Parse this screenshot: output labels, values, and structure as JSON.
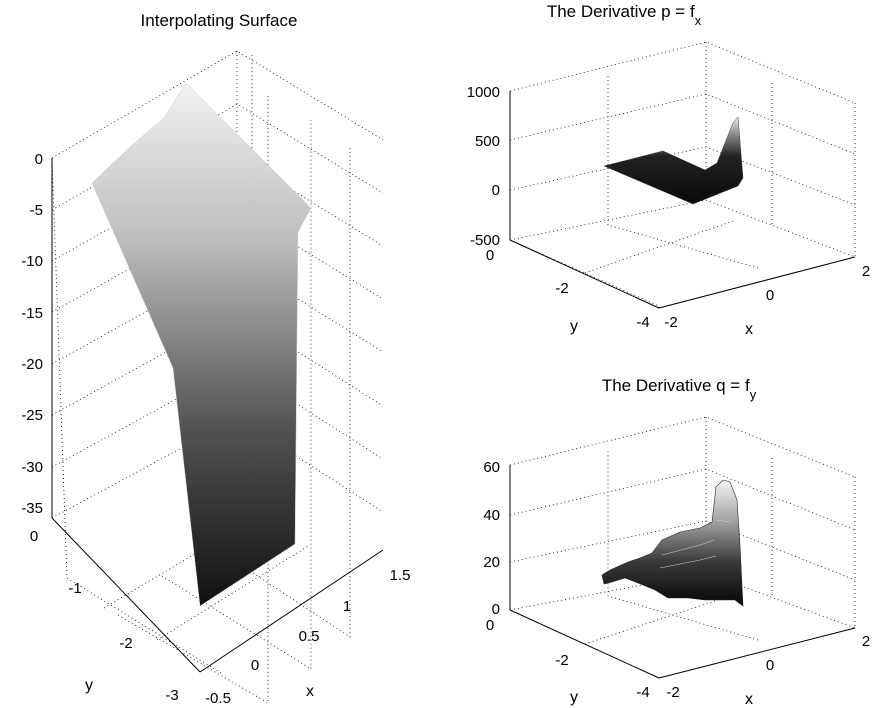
{
  "chart_data": [
    {
      "type": "surface",
      "title": "Interpolating Surface",
      "xlabel": "x",
      "ylabel": "y",
      "zlabel": "",
      "xlim": [
        -0.5,
        1.5
      ],
      "ylim": [
        -3,
        0
      ],
      "zlim": [
        -35,
        0
      ],
      "xticks": [
        "-0.5",
        "0",
        "0.5",
        "1",
        "1.5"
      ],
      "yticks": [
        "-3",
        "-2",
        "-1",
        "0"
      ],
      "zticks": [
        "-35",
        "-30",
        "-25",
        "-20",
        "-15",
        "-10",
        "-5",
        "0"
      ],
      "grid": true,
      "colormap": "gray",
      "surface_outline": [
        {
          "x": -0.5,
          "y": -3,
          "z": -35
        },
        {
          "x": 0.1,
          "y": -3,
          "z": -33
        },
        {
          "x": 0.5,
          "y": -1.1,
          "z": -10
        },
        {
          "x": 0.3,
          "y": -0.4,
          "z": -2
        },
        {
          "x": 0.2,
          "y": 0,
          "z": 0
        },
        {
          "x": -0.5,
          "y": 0,
          "z": -5
        }
      ]
    },
    {
      "type": "surface",
      "title_main": "The Derivative p = f",
      "title_sub": "x",
      "xlabel": "x",
      "ylabel": "y",
      "xlim": [
        -2,
        2
      ],
      "ylim": [
        -4,
        0
      ],
      "zlim": [
        -500,
        1000
      ],
      "xticks": [
        "-2",
        "0",
        "2"
      ],
      "yticks": [
        "-4",
        "-2",
        "0"
      ],
      "zticks": [
        "-500",
        "0",
        "500",
        "1000"
      ],
      "grid": true,
      "colormap": "gray",
      "surface_outline": [
        {
          "x": -2,
          "y": -1.0,
          "z": 100
        },
        {
          "x": -0.4,
          "y": -0.2,
          "z": 100
        },
        {
          "x": 0.5,
          "y": -2.2,
          "z": 100
        },
        {
          "x": 1.6,
          "y": -3.0,
          "z": 750
        },
        {
          "x": 1.6,
          "y": -3.3,
          "z": 0
        },
        {
          "x": 0.4,
          "y": -3.6,
          "z": -50
        }
      ]
    },
    {
      "type": "surface",
      "title_main": "The Derivative q = f",
      "title_sub": "y",
      "xlabel": "x",
      "ylabel": "y",
      "xlim": [
        -2,
        2
      ],
      "ylim": [
        -4,
        0
      ],
      "zlim": [
        0,
        60
      ],
      "xticks": [
        "-2",
        "0",
        "2"
      ],
      "yticks": [
        "-4",
        "-2",
        "0"
      ],
      "zticks": [
        "0",
        "20",
        "40",
        "60"
      ],
      "grid": true,
      "colormap": "gray",
      "surface_outline": [
        {
          "x": -2,
          "y": -1.2,
          "z": 10
        },
        {
          "x": -1,
          "y": -1.6,
          "z": 18
        },
        {
          "x": 0,
          "y": -2.4,
          "z": 25
        },
        {
          "x": 0.8,
          "y": -2.6,
          "z": 30
        },
        {
          "x": 1.0,
          "y": -2.8,
          "z": 52
        },
        {
          "x": 1.3,
          "y": -3.2,
          "z": 45
        },
        {
          "x": 1.4,
          "y": -3.5,
          "z": 1
        },
        {
          "x": 0.2,
          "y": -3.2,
          "z": 2
        },
        {
          "x": -1.2,
          "y": -2.2,
          "z": 5
        }
      ]
    }
  ]
}
